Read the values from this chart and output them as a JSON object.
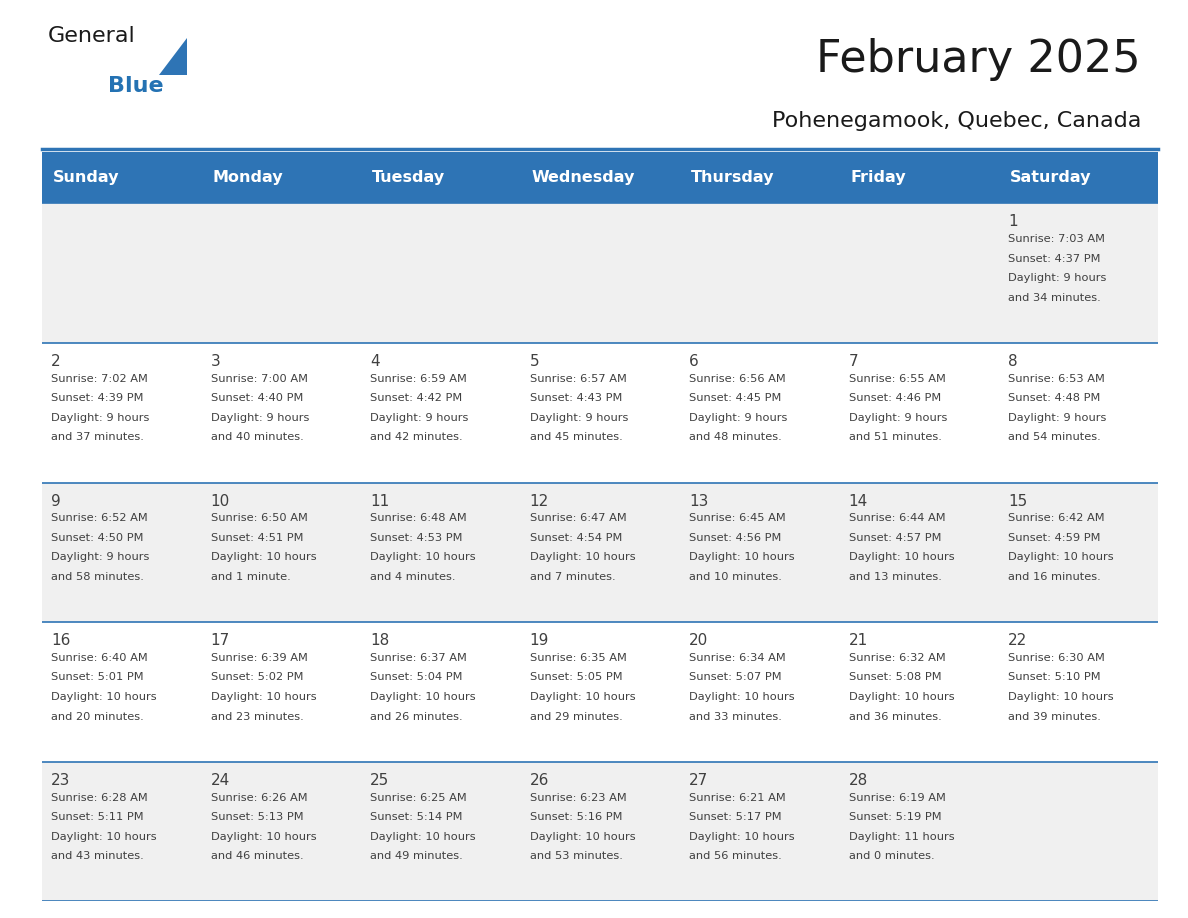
{
  "title": "February 2025",
  "subtitle": "Pohenegamook, Quebec, Canada",
  "header_bg": "#2E74B5",
  "header_text_color": "#FFFFFF",
  "cell_bg_white": "#FFFFFF",
  "cell_bg_gray": "#F0F0F0",
  "border_color": "#2E74B5",
  "text_color": "#404040",
  "days_of_week": [
    "Sunday",
    "Monday",
    "Tuesday",
    "Wednesday",
    "Thursday",
    "Friday",
    "Saturday"
  ],
  "calendar_data": [
    [
      null,
      null,
      null,
      null,
      null,
      null,
      {
        "day": 1,
        "sunrise": "7:03 AM",
        "sunset": "4:37 PM",
        "daylight": "9 hours",
        "daylight2": "and 34 minutes."
      }
    ],
    [
      {
        "day": 2,
        "sunrise": "7:02 AM",
        "sunset": "4:39 PM",
        "daylight": "9 hours",
        "daylight2": "and 37 minutes."
      },
      {
        "day": 3,
        "sunrise": "7:00 AM",
        "sunset": "4:40 PM",
        "daylight": "9 hours",
        "daylight2": "and 40 minutes."
      },
      {
        "day": 4,
        "sunrise": "6:59 AM",
        "sunset": "4:42 PM",
        "daylight": "9 hours",
        "daylight2": "and 42 minutes."
      },
      {
        "day": 5,
        "sunrise": "6:57 AM",
        "sunset": "4:43 PM",
        "daylight": "9 hours",
        "daylight2": "and 45 minutes."
      },
      {
        "day": 6,
        "sunrise": "6:56 AM",
        "sunset": "4:45 PM",
        "daylight": "9 hours",
        "daylight2": "and 48 minutes."
      },
      {
        "day": 7,
        "sunrise": "6:55 AM",
        "sunset": "4:46 PM",
        "daylight": "9 hours",
        "daylight2": "and 51 minutes."
      },
      {
        "day": 8,
        "sunrise": "6:53 AM",
        "sunset": "4:48 PM",
        "daylight": "9 hours",
        "daylight2": "and 54 minutes."
      }
    ],
    [
      {
        "day": 9,
        "sunrise": "6:52 AM",
        "sunset": "4:50 PM",
        "daylight": "9 hours",
        "daylight2": "and 58 minutes."
      },
      {
        "day": 10,
        "sunrise": "6:50 AM",
        "sunset": "4:51 PM",
        "daylight": "10 hours",
        "daylight2": "and 1 minute."
      },
      {
        "day": 11,
        "sunrise": "6:48 AM",
        "sunset": "4:53 PM",
        "daylight": "10 hours",
        "daylight2": "and 4 minutes."
      },
      {
        "day": 12,
        "sunrise": "6:47 AM",
        "sunset": "4:54 PM",
        "daylight": "10 hours",
        "daylight2": "and 7 minutes."
      },
      {
        "day": 13,
        "sunrise": "6:45 AM",
        "sunset": "4:56 PM",
        "daylight": "10 hours",
        "daylight2": "and 10 minutes."
      },
      {
        "day": 14,
        "sunrise": "6:44 AM",
        "sunset": "4:57 PM",
        "daylight": "10 hours",
        "daylight2": "and 13 minutes."
      },
      {
        "day": 15,
        "sunrise": "6:42 AM",
        "sunset": "4:59 PM",
        "daylight": "10 hours",
        "daylight2": "and 16 minutes."
      }
    ],
    [
      {
        "day": 16,
        "sunrise": "6:40 AM",
        "sunset": "5:01 PM",
        "daylight": "10 hours",
        "daylight2": "and 20 minutes."
      },
      {
        "day": 17,
        "sunrise": "6:39 AM",
        "sunset": "5:02 PM",
        "daylight": "10 hours",
        "daylight2": "and 23 minutes."
      },
      {
        "day": 18,
        "sunrise": "6:37 AM",
        "sunset": "5:04 PM",
        "daylight": "10 hours",
        "daylight2": "and 26 minutes."
      },
      {
        "day": 19,
        "sunrise": "6:35 AM",
        "sunset": "5:05 PM",
        "daylight": "10 hours",
        "daylight2": "and 29 minutes."
      },
      {
        "day": 20,
        "sunrise": "6:34 AM",
        "sunset": "5:07 PM",
        "daylight": "10 hours",
        "daylight2": "and 33 minutes."
      },
      {
        "day": 21,
        "sunrise": "6:32 AM",
        "sunset": "5:08 PM",
        "daylight": "10 hours",
        "daylight2": "and 36 minutes."
      },
      {
        "day": 22,
        "sunrise": "6:30 AM",
        "sunset": "5:10 PM",
        "daylight": "10 hours",
        "daylight2": "and 39 minutes."
      }
    ],
    [
      {
        "day": 23,
        "sunrise": "6:28 AM",
        "sunset": "5:11 PM",
        "daylight": "10 hours",
        "daylight2": "and 43 minutes."
      },
      {
        "day": 24,
        "sunrise": "6:26 AM",
        "sunset": "5:13 PM",
        "daylight": "10 hours",
        "daylight2": "and 46 minutes."
      },
      {
        "day": 25,
        "sunrise": "6:25 AM",
        "sunset": "5:14 PM",
        "daylight": "10 hours",
        "daylight2": "and 49 minutes."
      },
      {
        "day": 26,
        "sunrise": "6:23 AM",
        "sunset": "5:16 PM",
        "daylight": "10 hours",
        "daylight2": "and 53 minutes."
      },
      {
        "day": 27,
        "sunrise": "6:21 AM",
        "sunset": "5:17 PM",
        "daylight": "10 hours",
        "daylight2": "and 56 minutes."
      },
      {
        "day": 28,
        "sunrise": "6:19 AM",
        "sunset": "5:19 PM",
        "daylight": "11 hours",
        "daylight2": "and 0 minutes."
      },
      null
    ]
  ],
  "logo_text1": "General",
  "logo_text2": "Blue",
  "logo_text1_color": "#1a1a1a",
  "logo_text2_color": "#2472B3",
  "title_fontsize": 32,
  "subtitle_fontsize": 16,
  "header_fontsize": 11.5,
  "day_num_fontsize": 11,
  "cell_text_fontsize": 8.2
}
